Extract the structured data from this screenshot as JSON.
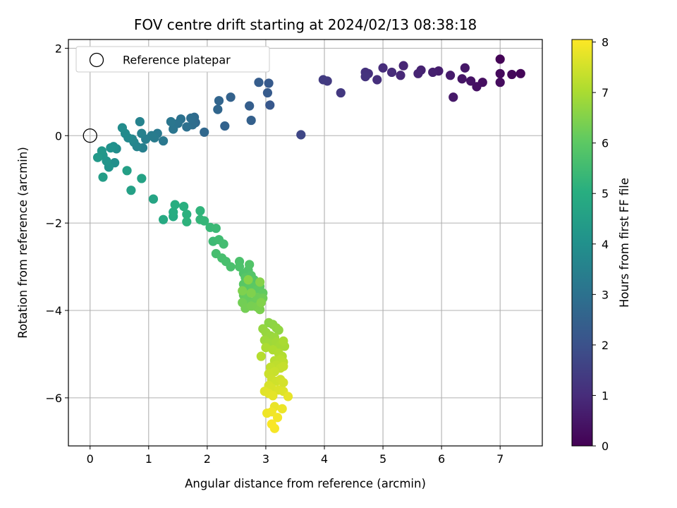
{
  "chart_data": {
    "type": "scatter",
    "title": "FOV centre drift starting at 2024/02/13 08:38:18",
    "xlabel": "Angular distance from reference (arcmin)",
    "ylabel": "Rotation from reference (arcmin)",
    "xlim": [
      -0.37,
      7.72
    ],
    "ylim": [
      -7.1,
      2.2
    ],
    "xticks": [
      0,
      1,
      2,
      3,
      4,
      5,
      6,
      7
    ],
    "xtick_labels": [
      "0",
      "1",
      "2",
      "3",
      "4",
      "5",
      "6",
      "7"
    ],
    "yticks": [
      2,
      0,
      -2,
      -4,
      -6
    ],
    "ytick_labels": [
      "2",
      "0",
      "−2",
      "−4",
      "−6"
    ],
    "grid": true,
    "legend": {
      "placement": "top-left",
      "entries": [
        {
          "marker": "open-circle",
          "label": "Reference platepar"
        }
      ]
    },
    "reference_point": {
      "x": 0,
      "y": 0
    },
    "colorbar": {
      "label": "Hours from first FF file",
      "colormap": "viridis",
      "range": [
        0,
        8.05
      ],
      "ticks": [
        0,
        1,
        2,
        3,
        4,
        5,
        6,
        7,
        8
      ],
      "tick_labels": [
        "0",
        "1",
        "2",
        "3",
        "4",
        "5",
        "6",
        "7",
        "8"
      ]
    },
    "points": [
      [
        7.0,
        1.75,
        0.05
      ],
      [
        7.35,
        1.42,
        0.1
      ],
      [
        7.2,
        1.4,
        0.15
      ],
      [
        7.0,
        1.42,
        0.2
      ],
      [
        7.0,
        1.22,
        0.25
      ],
      [
        6.7,
        1.22,
        0.3
      ],
      [
        6.6,
        1.12,
        0.35
      ],
      [
        6.5,
        1.25,
        0.4
      ],
      [
        6.35,
        1.3,
        0.45
      ],
      [
        6.4,
        1.55,
        0.5
      ],
      [
        6.2,
        0.88,
        0.55
      ],
      [
        6.15,
        1.38,
        0.6
      ],
      [
        5.95,
        1.48,
        0.65
      ],
      [
        5.85,
        1.45,
        0.7
      ],
      [
        5.65,
        1.5,
        0.75
      ],
      [
        5.6,
        1.42,
        0.8
      ],
      [
        5.35,
        1.6,
        0.85
      ],
      [
        5.3,
        1.38,
        0.9
      ],
      [
        5.15,
        1.45,
        0.95
      ],
      [
        5.0,
        1.55,
        1.0
      ],
      [
        4.9,
        1.28,
        1.05
      ],
      [
        4.75,
        1.42,
        1.1
      ],
      [
        4.7,
        1.45,
        1.15
      ],
      [
        4.7,
        1.35,
        1.2
      ],
      [
        4.28,
        0.98,
        1.3
      ],
      [
        4.05,
        1.25,
        1.35
      ],
      [
        3.98,
        1.28,
        1.4
      ],
      [
        3.6,
        0.02,
        1.7
      ],
      [
        3.07,
        0.7,
        2.2
      ],
      [
        3.05,
        1.2,
        2.25
      ],
      [
        3.03,
        0.98,
        2.3
      ],
      [
        2.88,
        1.22,
        2.35
      ],
      [
        2.72,
        0.68,
        2.4
      ],
      [
        2.75,
        0.35,
        2.45
      ],
      [
        2.4,
        0.88,
        2.5
      ],
      [
        2.3,
        0.22,
        2.55
      ],
      [
        2.2,
        0.8,
        2.6
      ],
      [
        2.18,
        0.6,
        2.65
      ],
      [
        1.95,
        0.08,
        2.7
      ],
      [
        1.8,
        0.3,
        2.75
      ],
      [
        1.78,
        0.42,
        2.8
      ],
      [
        1.75,
        0.25,
        2.85
      ],
      [
        1.72,
        0.4,
        2.9
      ],
      [
        1.65,
        0.2,
        2.95
      ],
      [
        1.55,
        0.38,
        3.0
      ],
      [
        1.5,
        0.28,
        3.05
      ],
      [
        1.42,
        0.15,
        3.1
      ],
      [
        1.38,
        0.32,
        3.15
      ],
      [
        1.25,
        -0.12,
        3.2
      ],
      [
        1.15,
        0.05,
        3.25
      ],
      [
        1.1,
        -0.05,
        3.3
      ],
      [
        1.05,
        0.0,
        3.35
      ],
      [
        0.95,
        -0.08,
        3.4
      ],
      [
        0.9,
        -0.28,
        3.45
      ],
      [
        0.88,
        0.05,
        3.5
      ],
      [
        0.85,
        0.32,
        3.55
      ],
      [
        0.8,
        -0.25,
        3.6
      ],
      [
        0.75,
        -0.15,
        3.65
      ],
      [
        0.72,
        -0.08,
        3.7
      ],
      [
        0.65,
        -0.05,
        3.75
      ],
      [
        0.6,
        0.05,
        3.8
      ],
      [
        0.55,
        0.18,
        3.85
      ],
      [
        0.45,
        -0.3,
        3.9
      ],
      [
        0.42,
        -0.62,
        3.95
      ],
      [
        0.4,
        -0.25,
        4.0
      ],
      [
        0.35,
        -0.28,
        4.05
      ],
      [
        0.32,
        -0.72,
        4.1
      ],
      [
        0.28,
        -0.58,
        4.15
      ],
      [
        0.22,
        -0.45,
        4.2
      ],
      [
        0.2,
        -0.35,
        4.25
      ],
      [
        0.13,
        -0.5,
        4.3
      ],
      [
        0.22,
        -0.95,
        4.45
      ],
      [
        0.63,
        -0.8,
        4.5
      ],
      [
        0.7,
        -1.25,
        4.55
      ],
      [
        0.88,
        -0.98,
        4.6
      ],
      [
        1.08,
        -1.45,
        4.7
      ],
      [
        1.25,
        -1.92,
        4.85
      ],
      [
        1.42,
        -1.85,
        4.9
      ],
      [
        1.42,
        -1.75,
        4.95
      ],
      [
        1.45,
        -1.58,
        5.0
      ],
      [
        1.6,
        -1.62,
        5.05
      ],
      [
        1.65,
        -1.8,
        5.1
      ],
      [
        1.65,
        -1.97,
        5.15
      ],
      [
        1.88,
        -1.72,
        5.2
      ],
      [
        1.88,
        -1.92,
        5.25
      ],
      [
        1.95,
        -1.95,
        5.3
      ],
      [
        2.05,
        -2.1,
        5.35
      ],
      [
        2.15,
        -2.12,
        5.4
      ],
      [
        2.1,
        -2.42,
        5.45
      ],
      [
        2.2,
        -2.38,
        5.5
      ],
      [
        2.28,
        -2.48,
        5.55
      ],
      [
        2.15,
        -2.7,
        5.6
      ],
      [
        2.25,
        -2.8,
        5.62
      ],
      [
        2.32,
        -2.88,
        5.65
      ],
      [
        2.4,
        -3.0,
        5.68
      ],
      [
        2.55,
        -2.88,
        5.7
      ],
      [
        2.55,
        -3.0,
        5.73
      ],
      [
        2.62,
        -3.15,
        5.76
      ],
      [
        2.7,
        -3.08,
        5.79
      ],
      [
        2.72,
        -2.95,
        5.82
      ],
      [
        2.75,
        -3.2,
        5.85
      ],
      [
        2.8,
        -3.3,
        5.88
      ],
      [
        2.65,
        -3.25,
        5.9
      ],
      [
        2.62,
        -3.4,
        5.93
      ],
      [
        2.7,
        -3.5,
        5.96
      ],
      [
        2.78,
        -3.45,
        5.99
      ],
      [
        2.82,
        -3.55,
        6.02
      ],
      [
        2.9,
        -3.45,
        6.05
      ],
      [
        2.95,
        -3.6,
        6.08
      ],
      [
        2.62,
        -3.65,
        6.11
      ],
      [
        2.68,
        -3.72,
        6.14
      ],
      [
        2.72,
        -3.85,
        6.17
      ],
      [
        2.8,
        -3.8,
        6.2
      ],
      [
        2.85,
        -3.7,
        6.23
      ],
      [
        2.95,
        -3.72,
        6.26
      ],
      [
        2.6,
        -3.82,
        6.29
      ],
      [
        2.65,
        -3.95,
        6.32
      ],
      [
        2.75,
        -3.9,
        6.35
      ],
      [
        2.85,
        -3.92,
        6.38
      ],
      [
        2.9,
        -3.98,
        6.41
      ],
      [
        2.6,
        -3.55,
        6.44
      ],
      [
        2.75,
        -3.6,
        6.47
      ],
      [
        2.92,
        -3.82,
        6.5
      ],
      [
        2.9,
        -3.35,
        6.53
      ],
      [
        2.7,
        -3.3,
        6.56
      ],
      [
        3.05,
        -4.28,
        6.6
      ],
      [
        3.12,
        -4.32,
        6.63
      ],
      [
        3.18,
        -4.4,
        6.66
      ],
      [
        3.22,
        -4.45,
        6.69
      ],
      [
        2.95,
        -4.42,
        6.72
      ],
      [
        3.0,
        -4.5,
        6.75
      ],
      [
        3.08,
        -4.58,
        6.78
      ],
      [
        3.15,
        -4.62,
        6.81
      ],
      [
        2.98,
        -4.68,
        6.84
      ],
      [
        3.05,
        -4.75,
        6.87
      ],
      [
        3.18,
        -4.72,
        6.9
      ],
      [
        3.25,
        -4.8,
        6.93
      ],
      [
        3.32,
        -4.82,
        6.96
      ],
      [
        3.3,
        -4.7,
        6.99
      ],
      [
        3.0,
        -4.85,
        7.02
      ],
      [
        3.12,
        -4.9,
        7.05
      ],
      [
        3.22,
        -4.98,
        7.08
      ],
      [
        3.28,
        -5.05,
        7.11
      ],
      [
        2.92,
        -5.05,
        7.14
      ],
      [
        3.15,
        -5.15,
        7.17
      ],
      [
        3.25,
        -5.12,
        7.2
      ],
      [
        3.3,
        -5.18,
        7.23
      ],
      [
        3.18,
        -5.25,
        7.26
      ],
      [
        3.08,
        -5.3,
        7.29
      ],
      [
        3.25,
        -5.32,
        7.32
      ],
      [
        3.3,
        -5.28,
        7.35
      ],
      [
        3.15,
        -5.4,
        7.38
      ],
      [
        3.05,
        -5.45,
        7.41
      ],
      [
        3.1,
        -5.58,
        7.44
      ],
      [
        3.18,
        -5.62,
        7.47
      ],
      [
        3.25,
        -5.58,
        7.5
      ],
      [
        3.3,
        -5.65,
        7.53
      ],
      [
        3.05,
        -5.72,
        7.56
      ],
      [
        3.1,
        -5.78,
        7.59
      ],
      [
        3.22,
        -5.82,
        7.62
      ],
      [
        3.3,
        -5.85,
        7.65
      ],
      [
        2.98,
        -5.85,
        7.68
      ],
      [
        3.05,
        -5.9,
        7.71
      ],
      [
        3.12,
        -5.95,
        7.74
      ],
      [
        3.38,
        -5.97,
        7.77
      ],
      [
        3.15,
        -6.2,
        7.8
      ],
      [
        3.28,
        -6.25,
        7.83
      ],
      [
        3.02,
        -6.35,
        7.86
      ],
      [
        3.1,
        -6.32,
        7.89
      ],
      [
        3.2,
        -6.45,
        7.92
      ],
      [
        3.15,
        -6.7,
        7.96
      ],
      [
        3.1,
        -6.6,
        8.0
      ]
    ]
  }
}
